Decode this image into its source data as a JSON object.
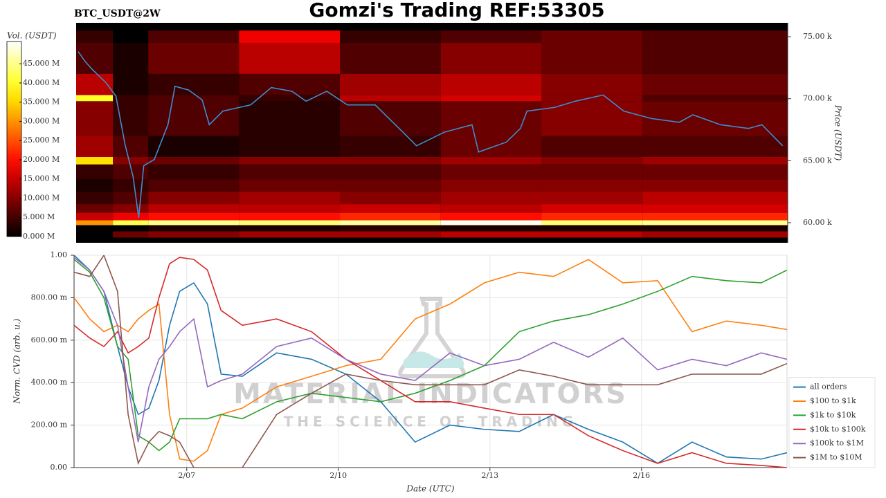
{
  "chart_data": [
    {
      "type": "heatmap",
      "title": "Gomzi's Trading REF:53305",
      "subtitle": "BTC_USDT@2W",
      "colormap": "hot",
      "colorbar_label": "Vol. (USDT)",
      "ylabel": "Price (USDT)",
      "xlim": [
        4.77,
        18.88
      ],
      "ylim": [
        58380,
        76120
      ],
      "yticks": [
        {
          "value": 60000,
          "label": "60.00 k"
        },
        {
          "value": 65000,
          "label": "65.00 k"
        },
        {
          "value": 70000,
          "label": "70.00 k"
        },
        {
          "value": 75000,
          "label": "75.00 k"
        }
      ],
      "clim": [
        0,
        50800000
      ],
      "cticks": [
        {
          "value": 0,
          "label": "0.000 M"
        },
        {
          "value": 5000000,
          "label": "5.000 M"
        },
        {
          "value": 10000000,
          "label": "10.000 M"
        },
        {
          "value": 15000000,
          "label": "15.000 M"
        },
        {
          "value": 20000000,
          "label": "20.000 M"
        },
        {
          "value": 25000000,
          "label": "25.000 M"
        },
        {
          "value": 30000000,
          "label": "30.000 M"
        },
        {
          "value": 35000000,
          "label": "35.000 M"
        },
        {
          "value": 40000000,
          "label": "40.000 M"
        },
        {
          "value": 45000000,
          "label": "45.000 M"
        }
      ],
      "x": [
        4.77,
        5.5,
        6.2,
        8,
        10,
        12,
        14,
        16,
        18.88
      ],
      "y": [
        58800,
        59300,
        59800,
        60200,
        60800,
        61500,
        62500,
        63500,
        64700,
        65300,
        67000,
        69800,
        70300,
        72000,
        74500,
        75500
      ],
      "z": [
        [
          0,
          8000000,
          10000000,
          12000000,
          12000000,
          14000000,
          14000000,
          12000000
        ],
        [
          0,
          0,
          2000000,
          2000000,
          3000000,
          2000000,
          2000000,
          2000000
        ],
        [
          30000000,
          42000000,
          45000000,
          44000000,
          46000000,
          50000000,
          44000000,
          45000000
        ],
        [
          15000000,
          18000000,
          20000000,
          20000000,
          22000000,
          20000000,
          22000000,
          22000000
        ],
        [
          8000000,
          10000000,
          14000000,
          14000000,
          15000000,
          14000000,
          16000000,
          16000000
        ],
        [
          4000000,
          6000000,
          10000000,
          12000000,
          10000000,
          12000000,
          12000000,
          14000000
        ],
        [
          2000000,
          4000000,
          6000000,
          8000000,
          8000000,
          10000000,
          10000000,
          10000000
        ],
        [
          4000000,
          6000000,
          4000000,
          6000000,
          6000000,
          8000000,
          8000000,
          8000000
        ],
        [
          36000000,
          10000000,
          8000000,
          10000000,
          10000000,
          12000000,
          10000000,
          12000000
        ],
        [
          12000000,
          6000000,
          2000000,
          3000000,
          4000000,
          8000000,
          6000000,
          6000000
        ],
        [
          10000000,
          4000000,
          6000000,
          3000000,
          6000000,
          8000000,
          10000000,
          8000000
        ],
        [
          40000000,
          4000000,
          6000000,
          4000000,
          14000000,
          16000000,
          10000000,
          6000000
        ],
        [
          14000000,
          2000000,
          4000000,
          6000000,
          12000000,
          14000000,
          10000000,
          8000000
        ],
        [
          6000000,
          2000000,
          8000000,
          14000000,
          6000000,
          10000000,
          8000000,
          6000000
        ],
        [
          4000000,
          0,
          6000000,
          18000000,
          4000000,
          6000000,
          8000000,
          6000000
        ]
      ],
      "series": [
        {
          "color": "#3a8fd0",
          "x": [
            4.81,
            4.95,
            5.08,
            5.36,
            5.56,
            5.74,
            5.9,
            6.01,
            6.11,
            6.32,
            6.59,
            6.73,
            7.0,
            7.27,
            7.41,
            7.68,
            8.23,
            8.64,
            9.05,
            9.33,
            9.74,
            10.15,
            10.7,
            11.25,
            11.52,
            12.07,
            12.62,
            12.75,
            13.3,
            13.58,
            13.71,
            14.26,
            14.67,
            15.22,
            15.63,
            16.18,
            16.73,
            17.0,
            17.55,
            18.1,
            18.37,
            18.78
          ],
          "values": [
            73800,
            73000,
            72400,
            71300,
            70200,
            66300,
            63700,
            60400,
            64600,
            65100,
            67900,
            71000,
            70700,
            69900,
            67900,
            69000,
            69500,
            70900,
            70600,
            69800,
            70600,
            69500,
            69500,
            67300,
            66200,
            67300,
            67900,
            65700,
            66500,
            67600,
            69000,
            69300,
            69800,
            70300,
            69000,
            68400,
            68100,
            68700,
            67900,
            67600,
            67900,
            66200
          ]
        }
      ]
    },
    {
      "type": "line",
      "xlabel": "Date (UTC)",
      "ylabel": "Norm. CVD (arb. u.)",
      "grid": true,
      "legend": "lower right",
      "watermark": {
        "title": "MATERIAL INDICATORS",
        "subtitle": "THE SCIENCE OF TRADING"
      },
      "xlim": [
        4.77,
        18.88
      ],
      "ylim": [
        0,
        1
      ],
      "xticks": [
        {
          "value": 7,
          "label": "2/07"
        },
        {
          "value": 10,
          "label": "2/10"
        },
        {
          "value": 13,
          "label": "2/13"
        },
        {
          "value": 16,
          "label": "2/16"
        }
      ],
      "yticks": [
        {
          "value": 0,
          "label": "0.00"
        },
        {
          "value": 0.2,
          "label": "200.00 m"
        },
        {
          "value": 0.4,
          "label": "400.00 m"
        },
        {
          "value": 0.6,
          "label": "600.00 m"
        },
        {
          "value": 0.8,
          "label": "800.00 m"
        },
        {
          "value": 1,
          "label": "1.00"
        }
      ],
      "x": [
        4.77,
        5.08,
        5.36,
        5.63,
        5.84,
        6.04,
        6.25,
        6.45,
        6.66,
        6.86,
        7.14,
        7.41,
        7.68,
        8.1,
        8.78,
        9.47,
        10.15,
        10.84,
        11.52,
        12.21,
        12.89,
        13.58,
        14.26,
        14.95,
        15.63,
        16.32,
        17.0,
        17.68,
        18.37,
        18.88
      ],
      "series": [
        {
          "name": "all orders",
          "color": "#1f77b4",
          "values": [
            1.0,
            0.93,
            0.83,
            0.57,
            0.38,
            0.25,
            0.28,
            0.41,
            0.67,
            0.83,
            0.87,
            0.77,
            0.44,
            0.43,
            0.54,
            0.51,
            0.44,
            0.31,
            0.12,
            0.2,
            0.18,
            0.17,
            0.25,
            0.18,
            0.12,
            0.02,
            0.12,
            0.05,
            0.04,
            0.07
          ]
        },
        {
          "name": "$100 to $1k",
          "color": "#ff7f0e",
          "values": [
            0.8,
            0.7,
            0.64,
            0.67,
            0.64,
            0.7,
            0.74,
            0.77,
            0.25,
            0.04,
            0.03,
            0.08,
            0.25,
            0.28,
            0.38,
            0.43,
            0.48,
            0.51,
            0.7,
            0.77,
            0.87,
            0.92,
            0.9,
            0.98,
            0.87,
            0.88,
            0.64,
            0.69,
            0.67,
            0.65
          ]
        },
        {
          "name": "$1k to $10k",
          "color": "#2ca02c",
          "values": [
            0.98,
            0.92,
            0.8,
            0.57,
            0.51,
            0.15,
            0.12,
            0.08,
            0.12,
            0.23,
            0.23,
            0.23,
            0.25,
            0.23,
            0.31,
            0.35,
            0.33,
            0.31,
            0.35,
            0.41,
            0.48,
            0.64,
            0.69,
            0.72,
            0.77,
            0.83,
            0.9,
            0.88,
            0.87,
            0.93
          ]
        },
        {
          "name": "$10k to $100k",
          "color": "#d62728",
          "values": [
            0.67,
            0.61,
            0.57,
            0.64,
            0.54,
            0.57,
            0.61,
            0.8,
            0.96,
            0.99,
            0.98,
            0.93,
            0.74,
            0.67,
            0.7,
            0.64,
            0.51,
            0.41,
            0.31,
            0.31,
            0.28,
            0.25,
            0.25,
            0.15,
            0.08,
            0.02,
            0.07,
            0.02,
            0.01,
            0
          ]
        },
        {
          "name": "$100k to $1M",
          "color": "#9467bd",
          "values": [
            0.99,
            0.93,
            0.83,
            0.67,
            0.38,
            0.12,
            0.38,
            0.51,
            0.57,
            0.64,
            0.7,
            0.38,
            0.41,
            0.44,
            0.57,
            0.61,
            0.51,
            0.44,
            0.41,
            0.54,
            0.48,
            0.51,
            0.59,
            0.52,
            0.61,
            0.46,
            0.51,
            0.48,
            0.54,
            0.51
          ]
        },
        {
          "name": "$1M to $10M",
          "color": "#8c564b",
          "values": [
            0.92,
            0.9,
            1.0,
            0.83,
            0.25,
            0.02,
            0.12,
            0.17,
            0.15,
            0.12,
            0,
            0,
            0,
            0,
            0.25,
            0.35,
            0.44,
            0.41,
            0.39,
            0.39,
            0.39,
            0.46,
            0.43,
            0.39,
            0.39,
            0.39,
            0.44,
            0.44,
            0.44,
            0.49
          ]
        }
      ]
    }
  ]
}
